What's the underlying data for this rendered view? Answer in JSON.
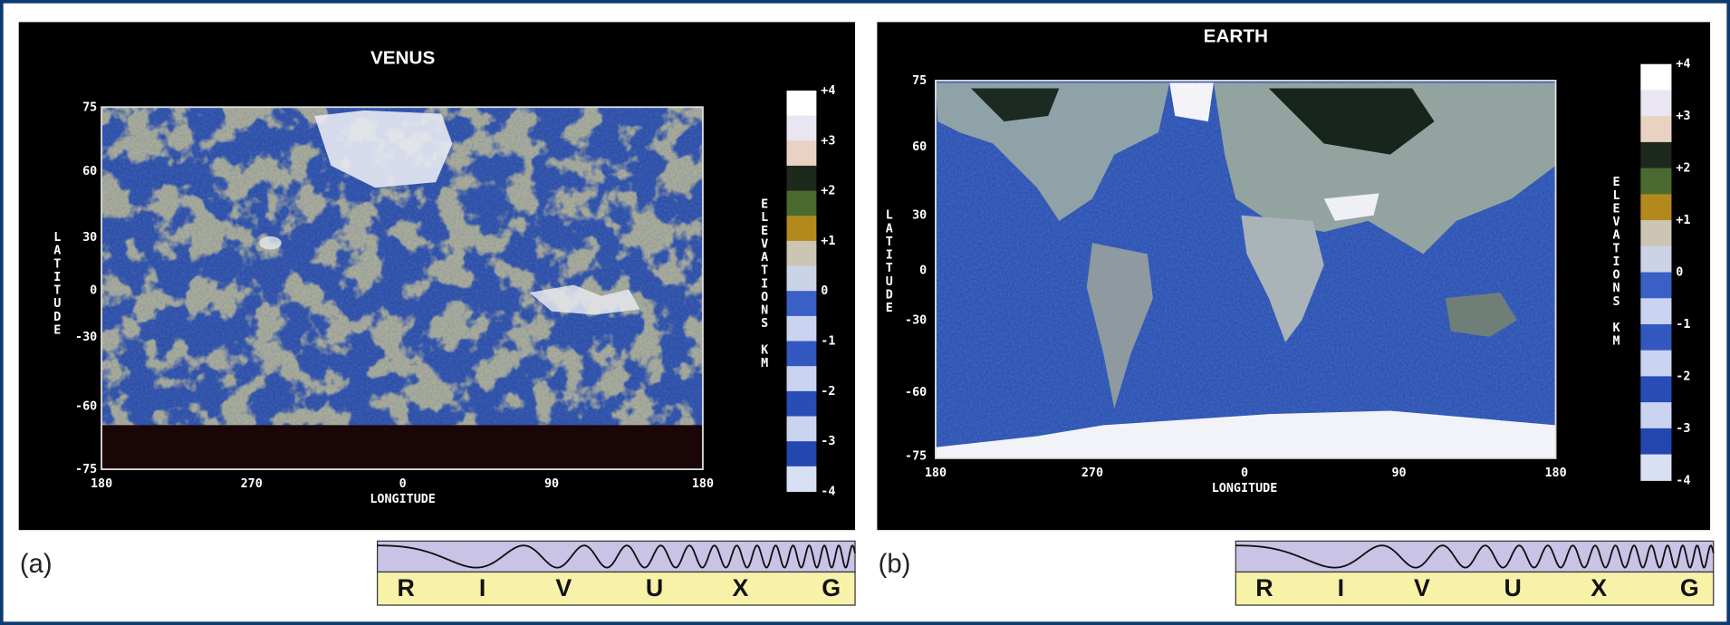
{
  "panels": [
    {
      "label": "(a)",
      "title": "VENUS",
      "latitude_label": "LATITUDE",
      "longitude_label": "LONGITUDE",
      "elevation_label": "ELEVATIONS KM",
      "lat_ticks": [
        "75",
        "60",
        "30",
        "0",
        "-30",
        "-60",
        "-75"
      ],
      "lon_ticks": [
        "180",
        "270",
        "0",
        "90",
        "180"
      ],
      "elevation_ticks": [
        "+4",
        "+3",
        "+2",
        "+1",
        "0",
        "-1",
        "-2",
        "-3",
        "-4"
      ],
      "spectrum": [
        "R",
        "I",
        "V",
        "U",
        "X",
        "G"
      ]
    },
    {
      "label": "(b)",
      "title": "EARTH",
      "latitude_label": "LATITUDE",
      "longitude_label": "LONGITUDE",
      "elevation_label": "ELEVATIONS KM",
      "lat_ticks": [
        "75",
        "60",
        "30",
        "0",
        "-30",
        "-60",
        "-75"
      ],
      "lon_ticks": [
        "180",
        "270",
        "0",
        "90",
        "180"
      ],
      "elevation_ticks": [
        "+4",
        "+3",
        "+2",
        "+1",
        "0",
        "-1",
        "-2",
        "-3",
        "-4"
      ],
      "spectrum": [
        "R",
        "I",
        "V",
        "U",
        "X",
        "G"
      ]
    }
  ]
}
